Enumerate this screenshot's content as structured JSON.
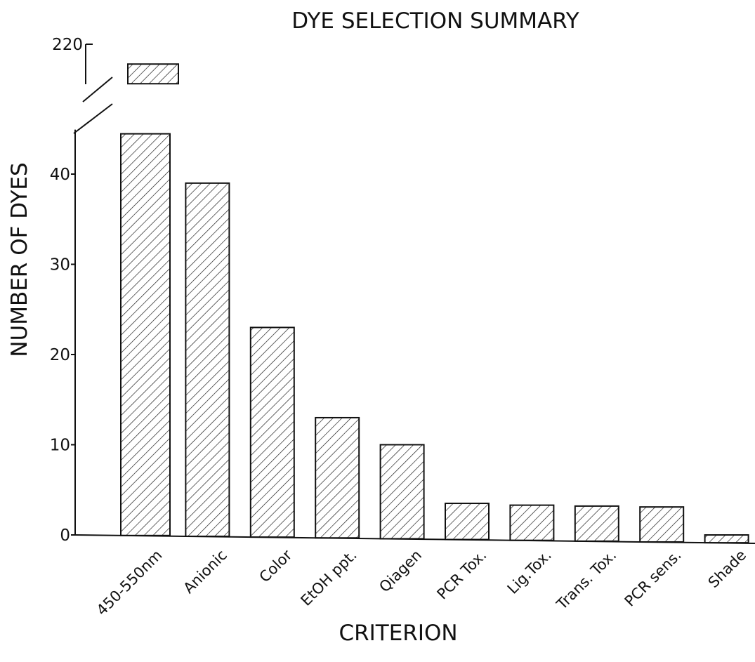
{
  "chart_data": {
    "type": "bar",
    "title": "DYE SELECTION SUMMARY",
    "xlabel": "CRITERION",
    "ylabel": "NUMBER OF DYES",
    "categories": [
      "450-550nm",
      "Anionic",
      "Color",
      "EtOH ppt.",
      "Qiagen",
      "PCR Tox.",
      "Lig.Tox.",
      "Trans. Tox.",
      "PCR sens.",
      "Shade"
    ],
    "values": [
      209,
      39,
      23,
      13,
      10,
      3.5,
      3.3,
      3.2,
      3.1,
      0
    ],
    "yticks": [
      0,
      10,
      20,
      30,
      40,
      220
    ],
    "ylim": [
      0,
      220
    ],
    "axis_break": [
      44,
      205
    ],
    "grid": false,
    "legend": "none",
    "bar_fill": "hatched diagonal",
    "colors": {
      "ink": "#111111",
      "background": "#ffffff"
    }
  }
}
